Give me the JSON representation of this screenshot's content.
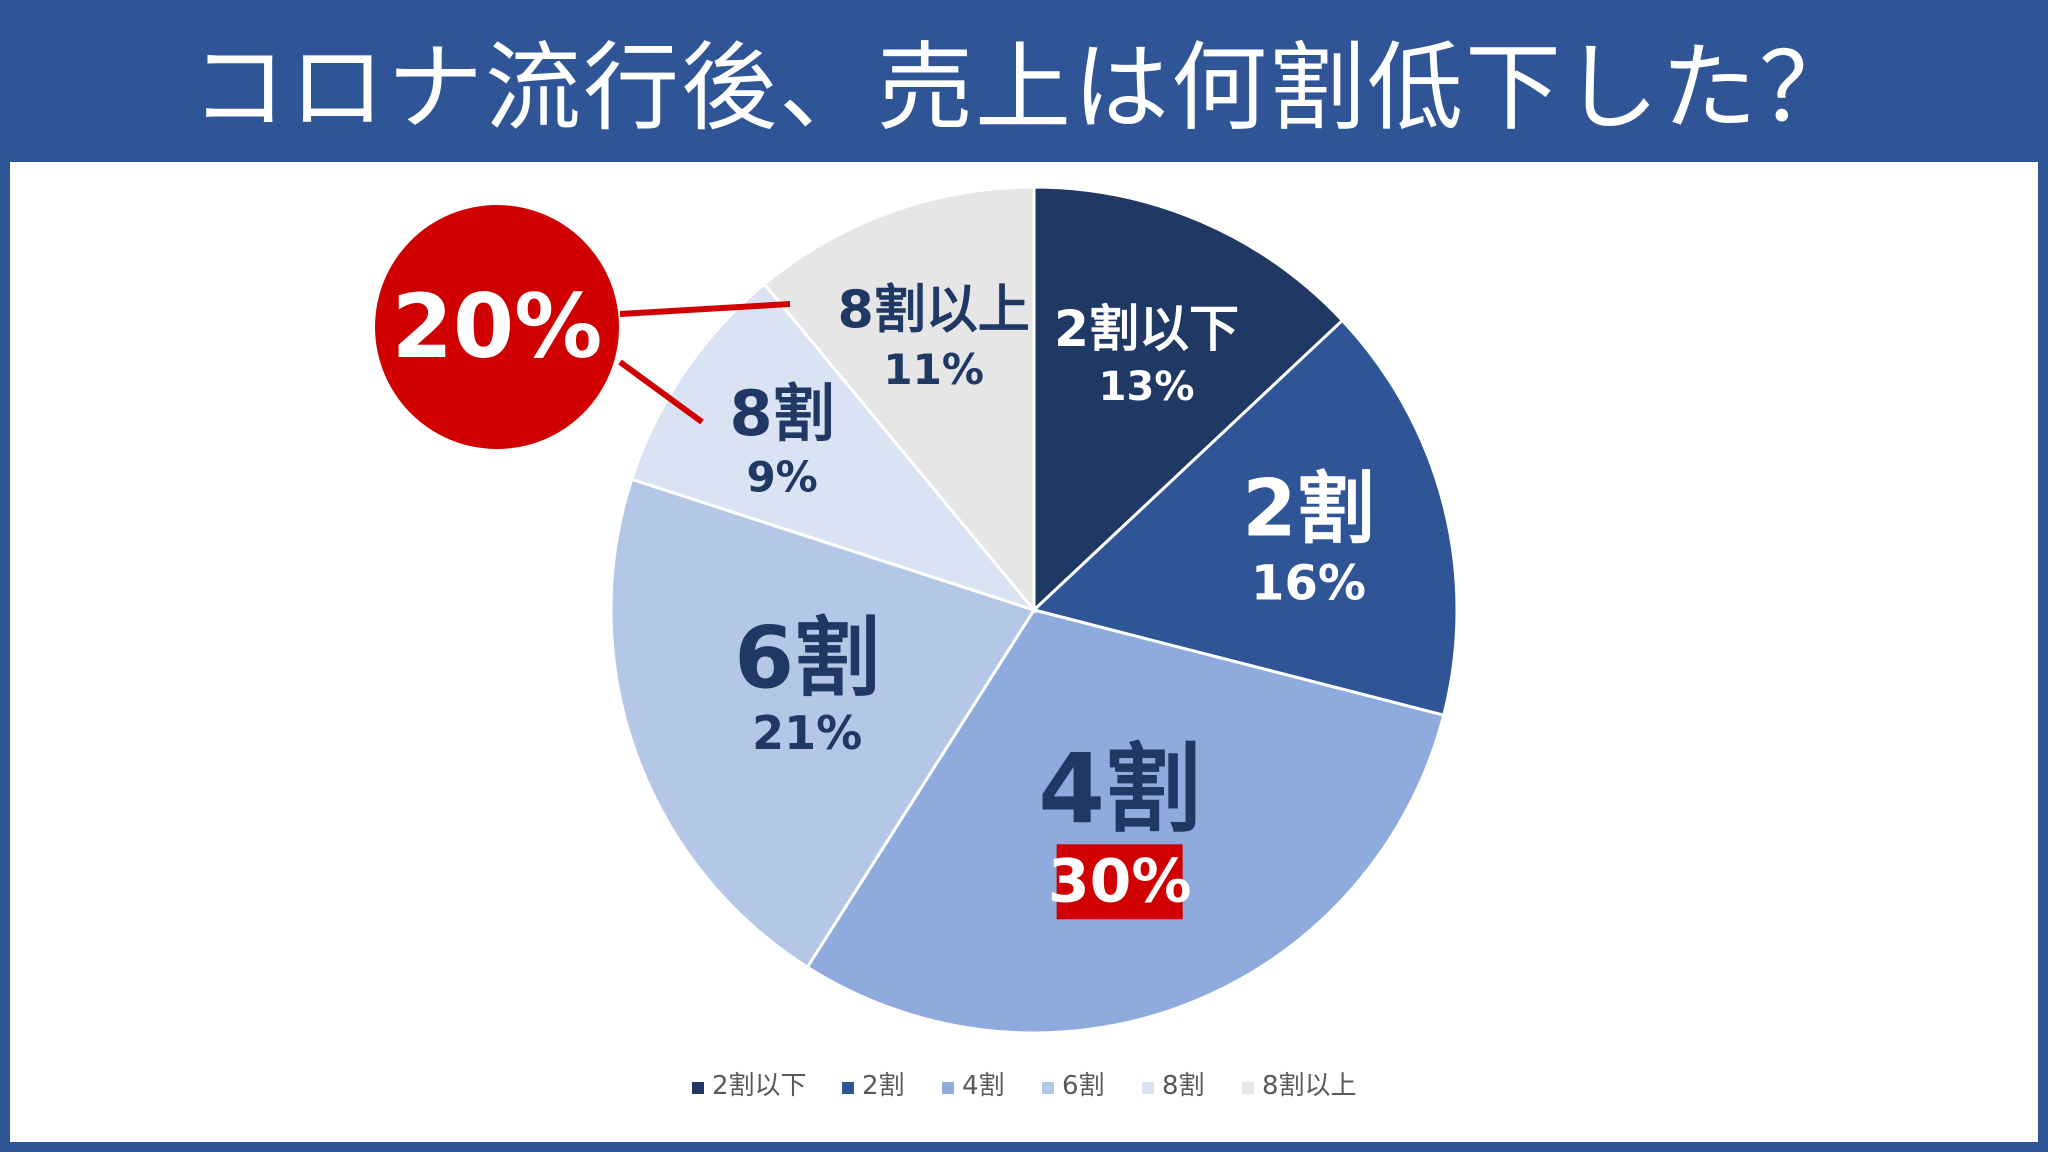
{
  "header": {
    "title": "コロナ流行後、売上は何割低下した？"
  },
  "callout": {
    "value": "20%"
  },
  "colors": {
    "header_bg": "#2f5597",
    "highlight": "#d00000",
    "label_dark": "#203864",
    "slices": [
      "#203864",
      "#2f5597",
      "#8faadc",
      "#b4c7e7",
      "#dae3f3",
      "#e7e6e6"
    ]
  },
  "chart_data": {
    "type": "pie",
    "categories": [
      "2割以下",
      "2割",
      "4割",
      "6割",
      "8割",
      "8割以上"
    ],
    "values": [
      13,
      16,
      30,
      21,
      9,
      11
    ],
    "value_labels": [
      "13%",
      "16%",
      "30%",
      "21%",
      "9%",
      "11%"
    ],
    "highlighted": "4割",
    "legend_position": "bottom"
  }
}
